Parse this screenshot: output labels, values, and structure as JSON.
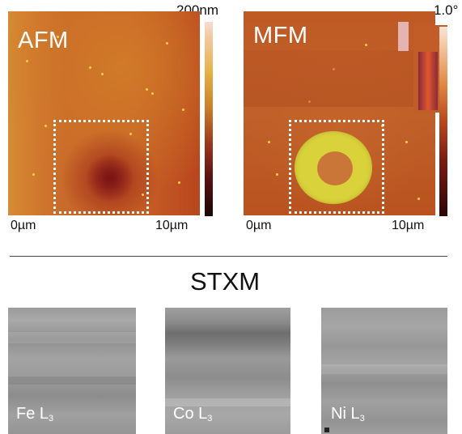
{
  "afm": {
    "title": "AFM",
    "colorbar_max": "200nm",
    "scale_left": "0µm",
    "scale_right": "10µm"
  },
  "mfm": {
    "title": "MFM",
    "colorbar_max": "1.0°",
    "scale_left": "0µm",
    "scale_right": "10µm"
  },
  "stxm": {
    "title": "STXM",
    "panels": [
      {
        "element": "Fe L",
        "edge": "3"
      },
      {
        "element": "Co L",
        "edge": "3"
      },
      {
        "element": "Ni L",
        "edge": "3"
      }
    ]
  },
  "colors": {
    "afm_low": "#7a1316",
    "afm_mid": "#c86327",
    "mfm_ring": "#d9d23b",
    "dotted_box": "#ffffff",
    "divider": "#444444"
  }
}
